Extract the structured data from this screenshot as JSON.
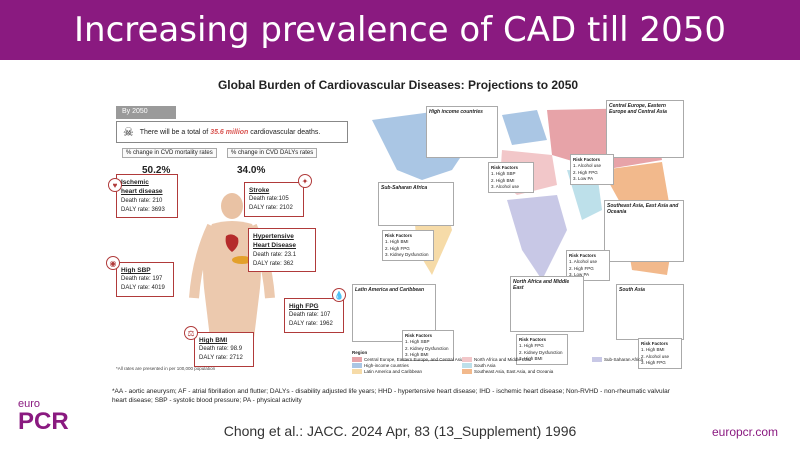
{
  "header": {
    "title": "Increasing prevalence of CAD till 2050"
  },
  "figure": {
    "title": "Global Burden of Cardiovascular Diseases: Projections to 2050",
    "by_label": "By 2050",
    "deaths_pre": "There will be a total of",
    "deaths_num": "35.6 million",
    "deaths_post": "cardiovascular deaths.",
    "mortality_label": "% change in CVD mortality rates",
    "mortality_value": "50.2%",
    "daly_label": "% change in CVD DALYs rates",
    "daly_value": "34.0%",
    "callouts": {
      "ihd": {
        "title_1": "Ischemic",
        "title_2": "heart disease",
        "death": "Death rate: 210",
        "daly": "DALY rate: 3693"
      },
      "stroke": {
        "title": "Stroke",
        "death": "Death rate:105",
        "daly": "DALY rate: 2102"
      },
      "hhd": {
        "title_1": "Hypertensive",
        "title_2": "Heart Disease",
        "death": "Death rate: 23.1",
        "daly": "DALY rate: 362"
      },
      "sbp": {
        "title": "High SBP",
        "death": "Death rate: 197",
        "daly": "DALY rate: 4019"
      },
      "fpg": {
        "title": "High FPG",
        "death": "Death rate: 107",
        "daly": "DALY rate: 1962"
      },
      "bmi": {
        "title": "High BMI",
        "death": "Death rate: 98.9",
        "daly": "DALY rate: 2712"
      }
    },
    "rates_note": "*All rates are presented in per 100,000 population",
    "regions": {
      "high_income": "High income countries",
      "central_europe": "Central Europe, Eastern Europe and Central Asia",
      "subsaharan": "Sub-Saharan Africa",
      "southeast_asia": "Southeast Asia, East Asia and Oceania",
      "latin_america": "Latin America and Caribbean",
      "north_africa": "North Africa and Middle East",
      "south_asia": "South Asia"
    },
    "risk_title": "Risk Factors",
    "risks": {
      "high_income": [
        "1. High SBP",
        "2. High BMI",
        "3. Alcohol use"
      ],
      "central_europe": [
        "1. Alcohol use",
        "2. High FPG",
        "3. Low PA"
      ],
      "subsaharan": [
        "1. High BMI",
        "2. High FPG",
        "3. Kidney Dysfunction"
      ],
      "southeast_asia": [
        "1. Alcohol use",
        "2. High FPG",
        "3. Low PA"
      ],
      "latin_america": [
        "1. High SBP",
        "2. Kidney Dysfunction",
        "3. High BMI"
      ],
      "north_africa": [
        "1. High FPG",
        "2. Kidney Dysfunction",
        "3. High BMI"
      ],
      "south_asia": [
        "1. High BMI",
        "2. Alcohol use",
        "3. High FPG"
      ]
    },
    "legend_title": "Region",
    "legend": [
      {
        "label": "Central Europe, Eastern Europe, and Central Asia",
        "color": "#e7a3a8"
      },
      {
        "label": "North Africa and Middle East",
        "color": "#f2c7c9"
      },
      {
        "label": "Sub-Saharan Africa",
        "color": "#c8c8e6"
      },
      {
        "label": "High-income countries",
        "color": "#aac6e4"
      },
      {
        "label": "South Asia",
        "color": "#bde0ea"
      },
      {
        "label": "Latin America and Caribbean",
        "color": "#f6dba8"
      },
      {
        "label": "Southeast Asia, East Asia, and Oceania",
        "color": "#f2b98c"
      }
    ]
  },
  "abbreviations": "*AA - aortic aneurysm; AF - atrial fibrillation and flutter; DALYs - disability adjusted life years; HHD - hypertensive heart disease; IHD - ischemic heart disease;  Non-RVHD - non-rheumatic valvular heart disease; SBP - systolic blood pressure; PA - physical activity",
  "citation": "Chong et al.: JACC. 2024 Apr, 83 (13_Supplement) 1996",
  "logo": {
    "top": "euro",
    "bottom": "PCR"
  },
  "site": "europcr.com",
  "colors": {
    "brand": "#8a1a80",
    "callout_border": "#b03a3a"
  }
}
